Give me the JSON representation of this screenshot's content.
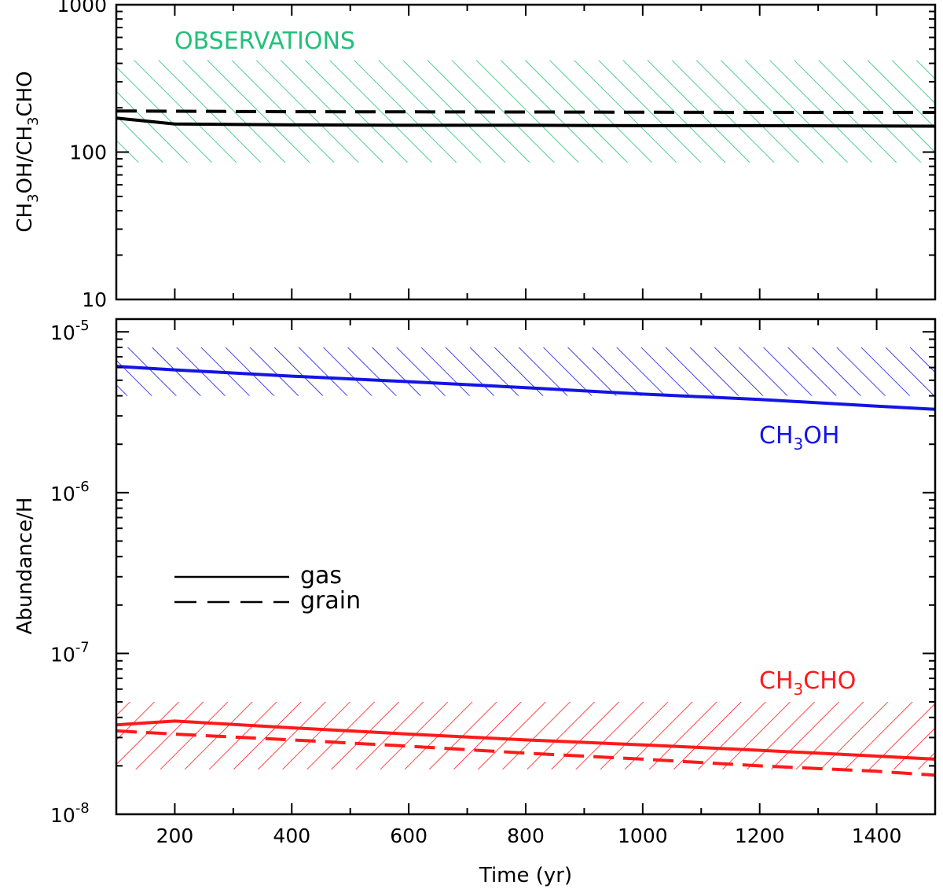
{
  "chart_data": [
    {
      "type": "line",
      "ylabel_parts": [
        {
          "t": "CH"
        },
        {
          "t": "3",
          "sub": true
        },
        {
          "t": "OH/CH"
        },
        {
          "t": "3",
          "sub": true
        },
        {
          "t": "CHO"
        }
      ],
      "xlim": [
        100,
        1500
      ],
      "ylim": [
        10,
        1000
      ],
      "yscale": "log",
      "y_ticks": [
        {
          "v": 10,
          "label": "10"
        },
        {
          "v": 100,
          "label": "100"
        },
        {
          "v": 1000,
          "label": "1000"
        }
      ],
      "bands": [
        {
          "label": "OBSERVATIONS",
          "ymin": 85,
          "ymax": 420,
          "color": "#22c07a",
          "hatch": "backslash"
        }
      ],
      "series": [
        {
          "style": "solid",
          "color": "#000000",
          "x": [
            100,
            200,
            400,
            600,
            800,
            1000,
            1200,
            1500
          ],
          "y": [
            170,
            155,
            153,
            152,
            152,
            151,
            151,
            150
          ]
        },
        {
          "style": "dashed",
          "color": "#000000",
          "x": [
            100,
            400,
            800,
            1200,
            1500
          ],
          "y": [
            190,
            188,
            187,
            186,
            186
          ]
        }
      ]
    },
    {
      "type": "line",
      "ylabel": "Abundance/H",
      "xlabel": "Time (yr)",
      "xlim": [
        100,
        1500
      ],
      "ylim": [
        1e-08,
        1.2e-05
      ],
      "yscale": "log",
      "x_ticks": [
        {
          "v": 200,
          "label": "200"
        },
        {
          "v": 400,
          "label": "400"
        },
        {
          "v": 600,
          "label": "600"
        },
        {
          "v": 800,
          "label": "800"
        },
        {
          "v": 1000,
          "label": "1000"
        },
        {
          "v": 1200,
          "label": "1200"
        },
        {
          "v": 1400,
          "label": "1400"
        }
      ],
      "y_ticks": [
        {
          "v": 1e-08,
          "base": "10",
          "exp": "-8"
        },
        {
          "v": 1e-07,
          "base": "10",
          "exp": "-7"
        },
        {
          "v": 1e-06,
          "base": "10",
          "exp": "-6"
        },
        {
          "v": 1e-05,
          "base": "10",
          "exp": "-5"
        }
      ],
      "bands": [
        {
          "name": "CH3OH",
          "ymin": 4e-06,
          "ymax": 8e-06,
          "color": "#1414e6",
          "hatch": "backslash"
        },
        {
          "name": "CH3CHO",
          "ymin": 1.9e-08,
          "ymax": 5e-08,
          "color": "#ff1a1a",
          "hatch": "slash"
        }
      ],
      "series": [
        {
          "species": "CH3OH",
          "style": "solid",
          "color": "#1414e6",
          "x": [
            100,
            200,
            400,
            600,
            800,
            1000,
            1200,
            1400,
            1500
          ],
          "y": [
            6.1e-06,
            5.8e-06,
            5.3e-06,
            4.9e-06,
            4.5e-06,
            4.1e-06,
            3.8e-06,
            3.45e-06,
            3.3e-06
          ]
        },
        {
          "species": "CH3CHO",
          "style": "solid",
          "color": "#ff1a1a",
          "x": [
            100,
            200,
            400,
            600,
            800,
            1000,
            1200,
            1400,
            1500
          ],
          "y": [
            3.6e-08,
            3.8e-08,
            3.45e-08,
            3.15e-08,
            2.9e-08,
            2.7e-08,
            2.5e-08,
            2.3e-08,
            2.2e-08
          ]
        },
        {
          "species": "CH3CHO",
          "style": "dashed",
          "color": "#ff1a1a",
          "x": [
            100,
            200,
            400,
            600,
            800,
            1000,
            1200,
            1400,
            1500
          ],
          "y": [
            3.3e-08,
            3.15e-08,
            2.9e-08,
            2.65e-08,
            2.4e-08,
            2.2e-08,
            2e-08,
            1.85e-08,
            1.75e-08
          ]
        }
      ],
      "annotations": [
        {
          "parts": [
            {
              "t": "CH"
            },
            {
              "t": "3",
              "sub": true
            },
            {
              "t": "OH"
            }
          ],
          "color": "#1414e6"
        },
        {
          "parts": [
            {
              "t": "CH"
            },
            {
              "t": "3",
              "sub": true
            },
            {
              "t": "CHO"
            }
          ],
          "color": "#ff1a1a"
        }
      ],
      "legend": {
        "placement": "center-left",
        "entries": [
          {
            "label": "gas",
            "style": "solid"
          },
          {
            "label": "grain",
            "style": "dashed"
          }
        ]
      }
    }
  ]
}
